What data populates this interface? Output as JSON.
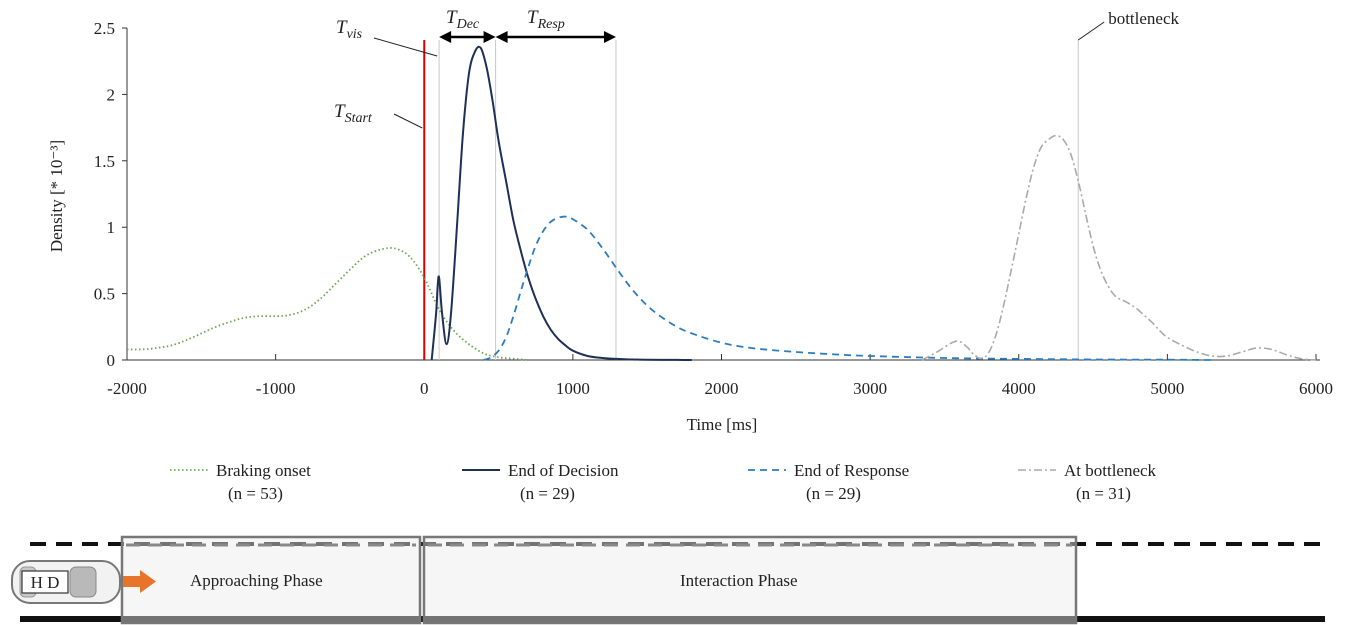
{
  "chart_data": {
    "type": "line",
    "title": "",
    "xlabel": "Time [ms]",
    "ylabel": "Density [* 10⁻³]",
    "xlim": [
      -2000,
      6000
    ],
    "ylim": [
      0,
      2.5
    ],
    "x_ticks": [
      "-2000",
      "-1000",
      "0",
      "1000",
      "2000",
      "3000",
      "4000",
      "5000",
      "6000"
    ],
    "y_ticks": [
      "0",
      "0.5",
      "1",
      "1.5",
      "2",
      "2.5"
    ],
    "grid": false,
    "legend_position": "bottom",
    "series": [
      {
        "name": "Braking onset",
        "n_label": "(n = 53)",
        "color": "#6aa84f",
        "style": "dotted",
        "x": [
          -2000,
          -1900,
          -1800,
          -1700,
          -1600,
          -1500,
          -1400,
          -1300,
          -1200,
          -1100,
          -1000,
          -900,
          -800,
          -700,
          -600,
          -500,
          -400,
          -300,
          -200,
          -100,
          0,
          100,
          200,
          300,
          400,
          500,
          600,
          700
        ],
        "y": [
          0.08,
          0.08,
          0.09,
          0.11,
          0.15,
          0.2,
          0.25,
          0.29,
          0.32,
          0.33,
          0.33,
          0.34,
          0.38,
          0.46,
          0.57,
          0.68,
          0.78,
          0.83,
          0.84,
          0.78,
          0.62,
          0.38,
          0.22,
          0.12,
          0.05,
          0.02,
          0.01,
          0.0
        ]
      },
      {
        "name": "End of Decision",
        "n_label": "(n = 29)",
        "color": "#1f2f55",
        "style": "solid",
        "x": [
          50,
          80,
          90,
          100,
          120,
          150,
          180,
          220,
          260,
          300,
          340,
          380,
          420,
          460,
          500,
          550,
          600,
          650,
          700,
          750,
          800,
          850,
          900,
          950,
          1000,
          1100,
          1200,
          1300,
          1400,
          1500,
          1600,
          1700,
          1800
        ],
        "y": [
          0.0,
          0.35,
          0.55,
          0.62,
          0.35,
          0.12,
          0.35,
          1.0,
          1.7,
          2.15,
          2.32,
          2.35,
          2.2,
          1.95,
          1.65,
          1.35,
          1.05,
          0.82,
          0.62,
          0.46,
          0.33,
          0.23,
          0.16,
          0.11,
          0.07,
          0.03,
          0.015,
          0.008,
          0.004,
          0.002,
          0.001,
          0.0005,
          0.0
        ]
      },
      {
        "name": "End of Response",
        "n_label": "(n = 29)",
        "color": "#2e7bbf",
        "style": "dashed",
        "x": [
          400,
          450,
          500,
          550,
          600,
          650,
          700,
          750,
          800,
          850,
          900,
          950,
          1000,
          1100,
          1200,
          1300,
          1400,
          1500,
          1600,
          1700,
          1800,
          2000,
          2200,
          2500,
          2800,
          3000,
          3500,
          4000,
          4500,
          5000,
          5300
        ],
        "y": [
          0.0,
          0.02,
          0.07,
          0.17,
          0.33,
          0.52,
          0.7,
          0.86,
          0.97,
          1.04,
          1.07,
          1.08,
          1.06,
          0.98,
          0.84,
          0.68,
          0.53,
          0.41,
          0.32,
          0.25,
          0.2,
          0.13,
          0.09,
          0.06,
          0.04,
          0.03,
          0.015,
          0.008,
          0.004,
          0.002,
          0.0
        ]
      },
      {
        "name": "At bottleneck",
        "n_label": "(n = 31)",
        "color": "#aaaaaa",
        "style": "dashdot",
        "x": [
          3350,
          3450,
          3550,
          3600,
          3650,
          3700,
          3750,
          3800,
          3850,
          3900,
          3950,
          4000,
          4050,
          4100,
          4150,
          4200,
          4250,
          4300,
          4350,
          4400,
          4450,
          4500,
          4550,
          4600,
          4650,
          4700,
          4750,
          4800,
          4850,
          4900,
          4950,
          5000,
          5100,
          5200,
          5300,
          5400,
          5500,
          5600,
          5700,
          5800,
          5900,
          6000
        ],
        "y": [
          0.0,
          0.06,
          0.13,
          0.14,
          0.1,
          0.04,
          0.01,
          0.06,
          0.2,
          0.42,
          0.68,
          0.95,
          1.22,
          1.45,
          1.6,
          1.66,
          1.69,
          1.66,
          1.55,
          1.35,
          1.1,
          0.86,
          0.68,
          0.56,
          0.48,
          0.45,
          0.42,
          0.38,
          0.33,
          0.28,
          0.22,
          0.17,
          0.11,
          0.06,
          0.03,
          0.03,
          0.06,
          0.09,
          0.08,
          0.04,
          0.01,
          0.0
        ]
      }
    ],
    "annotations": {
      "t_start": {
        "base": "T",
        "sub": "Start",
        "x": 0,
        "color": "#e00000"
      },
      "t_vis": {
        "base": "T",
        "sub": "vis",
        "x": 100
      },
      "t_dec": {
        "base": "T",
        "sub": "Dec",
        "from": 100,
        "to": 480
      },
      "t_resp": {
        "base": "T",
        "sub": "Resp",
        "from": 480,
        "to": 1290
      },
      "bottleneck": {
        "label": "bottleneck",
        "x": 4400
      }
    }
  },
  "scenario": {
    "vehicle_label": "H D",
    "arrow_color": "#e8732a",
    "approaching_phase": "Approaching Phase",
    "interaction_phase": "Interaction Phase"
  }
}
